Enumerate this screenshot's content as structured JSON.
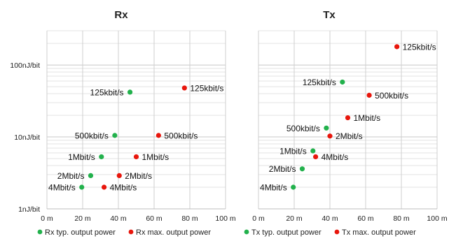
{
  "chart_data": [
    {
      "type": "scatter",
      "title": "Rx",
      "x_ticks": [
        "0 m",
        "20 m",
        "40 m",
        "60 m",
        "80 m",
        "100 m"
      ],
      "y_ticks": [
        "100nJ/bit",
        "10nJ/bit",
        "1nJ/bit"
      ],
      "xlim": [
        0,
        100
      ],
      "ylim": [
        1,
        300
      ],
      "y_scale": "log",
      "grid": true,
      "legend_position": "bottom",
      "series": [
        {
          "name": "Rx typ. output power",
          "color": "#22b14c",
          "points": [
            {
              "x": 46.5,
              "y": 42,
              "label": "125kbit/s"
            },
            {
              "x": 38,
              "y": 10.5,
              "label": "500kbit/s"
            },
            {
              "x": 30.5,
              "y": 5.3,
              "label": "1Mbit/s"
            },
            {
              "x": 24.5,
              "y": 2.9,
              "label": "2Mbit/s"
            },
            {
              "x": 19.5,
              "y": 2.0,
              "label": "4Mbit/s"
            }
          ]
        },
        {
          "name": "Rx max. output power",
          "color": "#e8160c",
          "points": [
            {
              "x": 77,
              "y": 48,
              "label": "125kbit/s"
            },
            {
              "x": 62.5,
              "y": 10.5,
              "label": "500kbit/s"
            },
            {
              "x": 50,
              "y": 5.3,
              "label": "1Mbit/s"
            },
            {
              "x": 40.5,
              "y": 2.9,
              "label": "2Mbit/s"
            },
            {
              "x": 32,
              "y": 2.0,
              "label": "4Mbit/s"
            }
          ]
        }
      ]
    },
    {
      "type": "scatter",
      "title": "Tx",
      "x_ticks": [
        "0 m",
        "20 m",
        "40 m",
        "60 m",
        "80 m",
        "100 m"
      ],
      "y_ticks": [],
      "xlim": [
        0,
        100
      ],
      "ylim": [
        1,
        300
      ],
      "y_scale": "log",
      "grid": true,
      "legend_position": "bottom",
      "series": [
        {
          "name": "Tx typ. output power",
          "color": "#22b14c",
          "points": [
            {
              "x": 47,
              "y": 58,
              "label": "125kbit/s"
            },
            {
              "x": 38,
              "y": 13.3,
              "label": "500kbit/s"
            },
            {
              "x": 30.5,
              "y": 6.4,
              "label": "1Mbit/s"
            },
            {
              "x": 24.5,
              "y": 3.6,
              "label": "2Mbit/s"
            },
            {
              "x": 19.5,
              "y": 2.0,
              "label": "4Mbit/s"
            }
          ]
        },
        {
          "name": "Tx max. output power",
          "color": "#e8160c",
          "points": [
            {
              "x": 77.5,
              "y": 180,
              "label": "125kbit/s"
            },
            {
              "x": 62,
              "y": 38,
              "label": "500kbit/s"
            },
            {
              "x": 50,
              "y": 18.5,
              "label": "1Mbit/s"
            },
            {
              "x": 40,
              "y": 10.3,
              "label": "2Mbit/s"
            },
            {
              "x": 32,
              "y": 5.3,
              "label": "4Mbit/s"
            }
          ]
        }
      ]
    }
  ]
}
